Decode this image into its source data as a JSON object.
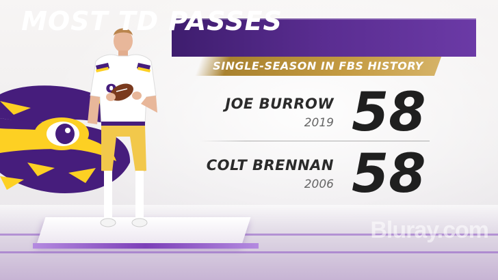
{
  "graphic": {
    "title": "MOST TD PASSES",
    "subtitle": "SINGLE-SEASON IN FBS HISTORY",
    "rows": [
      {
        "name": "JOE BURROW",
        "year": "2019",
        "value": "58"
      },
      {
        "name": "COLT BRENNAN",
        "year": "2006",
        "value": "58"
      }
    ],
    "watermark": "Bluray.com",
    "jersey_number": "9"
  },
  "colors": {
    "title_bg": "#5a2d91",
    "subtitle_bg": "#c39a41",
    "lsu_purple": "#461d7c",
    "lsu_gold": "#fdd023",
    "text_dark": "#1f1f1f"
  },
  "icons": {
    "logo": "lsu-tiger-eye-logo",
    "player": "football-player-figure"
  }
}
